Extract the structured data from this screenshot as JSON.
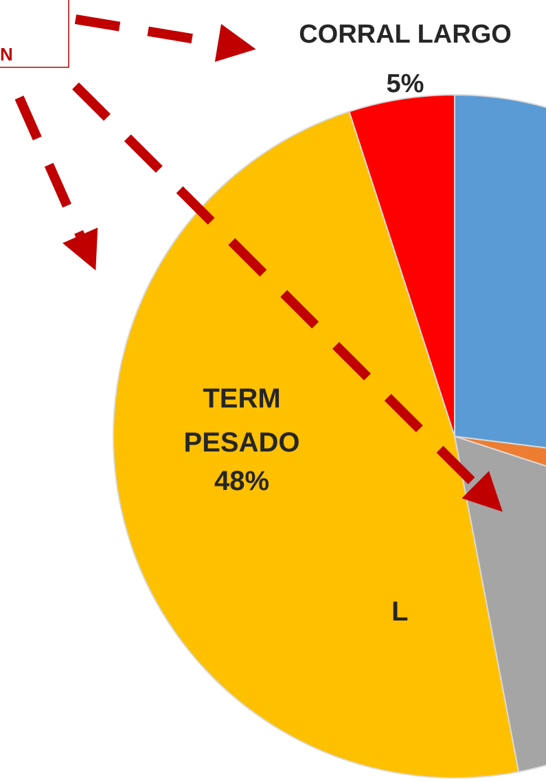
{
  "chart_data": {
    "type": "pie",
    "categories": [
      null,
      null,
      "L",
      "TERM PESADO",
      "CORRAL LARGO"
    ],
    "values": [
      27,
      3,
      17,
      48,
      5
    ],
    "value_labels": [
      null,
      null,
      null,
      "48%",
      "5%"
    ],
    "colors": [
      "#5b9bd5",
      "#ed7d31",
      "#a5a5a5",
      "#ffc000",
      "#ff0000"
    ],
    "annotation": "N"
  }
}
